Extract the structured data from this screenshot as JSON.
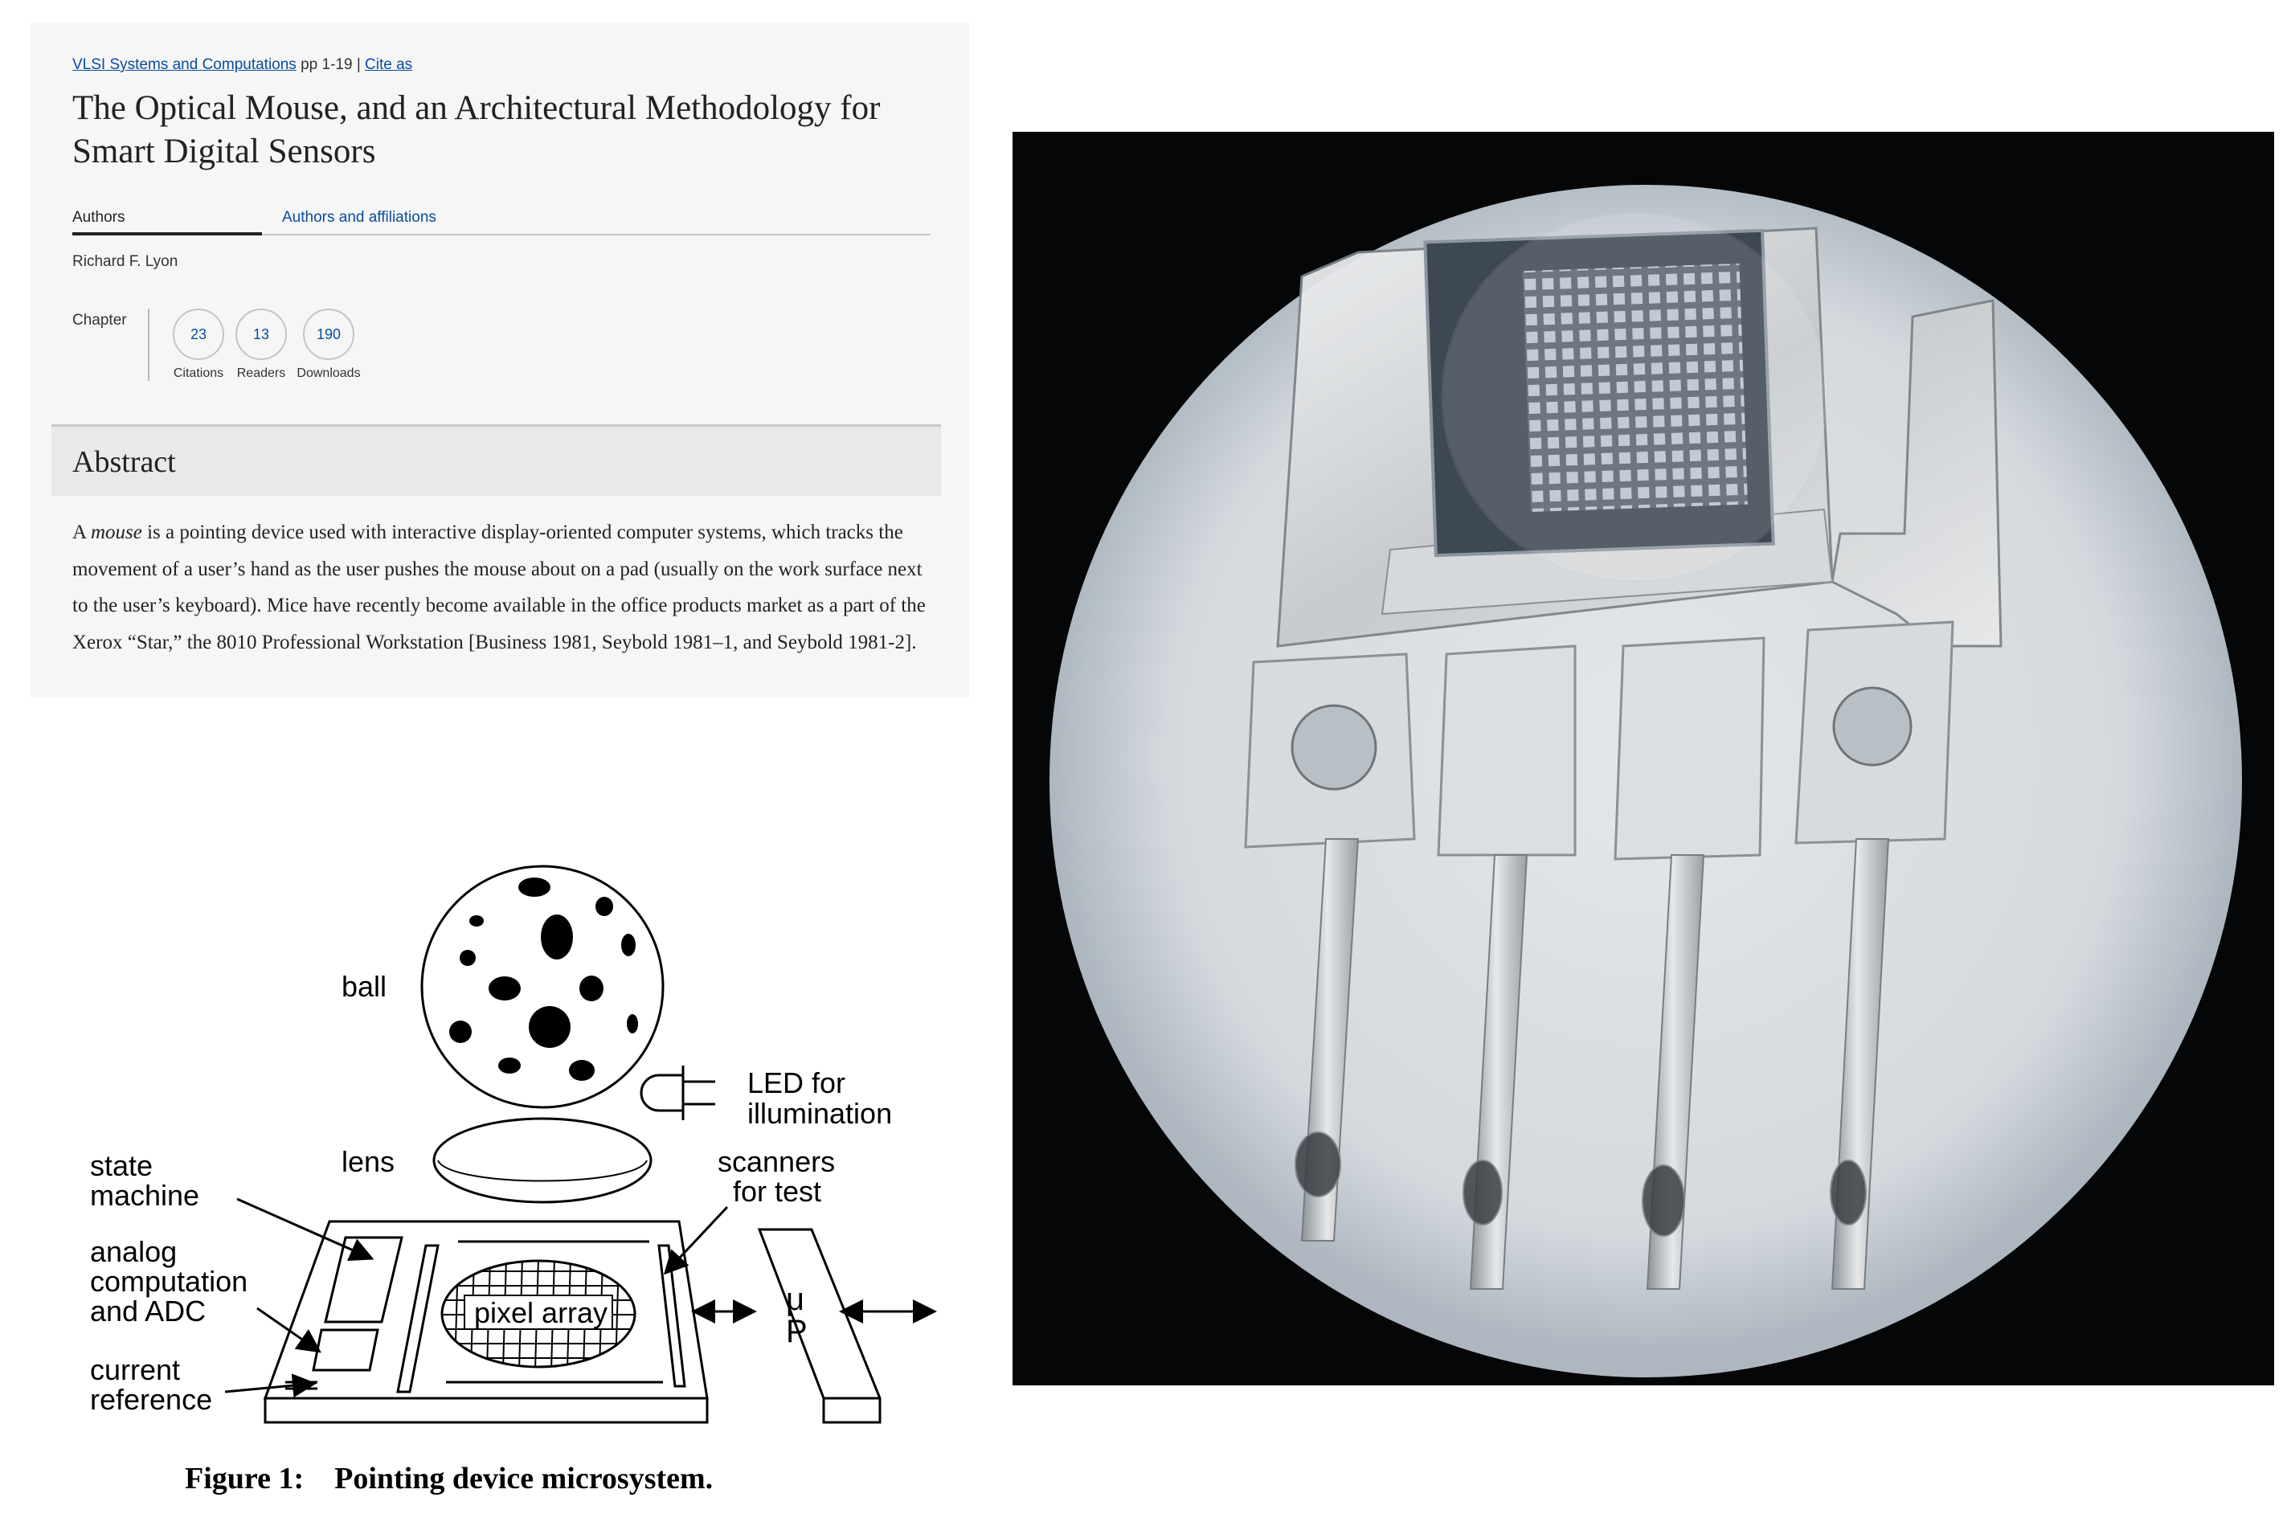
{
  "article": {
    "book_link": "VLSI Systems and Computations",
    "pages": "pp 1-19",
    "separator": "|",
    "cite_link": "Cite as",
    "title": "The Optical Mouse, and an Architectural Methodology for Smart Digital Sensors",
    "tabs": [
      {
        "label": "Authors",
        "active": true
      },
      {
        "label": "Authors and affiliations",
        "active": false
      }
    ],
    "author": "Richard F. Lyon",
    "chapter_label": "Chapter",
    "metrics": [
      {
        "value": "23",
        "label": "Citations"
      },
      {
        "value": "13",
        "label": "Readers"
      },
      {
        "value": "190",
        "label": "Downloads"
      }
    ],
    "abstract_heading": "Abstract",
    "abstract": {
      "prefix": "A ",
      "emphasis": "mouse",
      "body": " is a pointing device used with interactive display-oriented computer systems, which tracks the movement of a user’s hand as the user pushes the mouse about on a pad (usually on the work surface next to the user’s keyboard). Mice have recently become available in the office products market as a part of the Xerox “Star,” the 8010 Professional Workstation [Business 1981, Seybold 1981–1, and Seybold 1981-2]."
    }
  },
  "figure": {
    "labels": {
      "ball": "ball",
      "led_1": "LED for",
      "led_2": "illumination",
      "lens": "lens",
      "state_1": "state",
      "state_2": "machine",
      "scanners_1": "scanners",
      "scanners_2": "for test",
      "analog_1": "analog",
      "analog_2": "computation",
      "analog_3": "and ADC",
      "pixel_array": "pixel array",
      "mu": "μ",
      "p": "P",
      "current_1": "current",
      "current_2": "reference"
    },
    "caption": "Figure 1:    Pointing device microsystem."
  },
  "colors": {
    "link": "#0a4b9f",
    "card_bg": "#f6f6f6",
    "abstract_bar": "#e9e9e9"
  }
}
